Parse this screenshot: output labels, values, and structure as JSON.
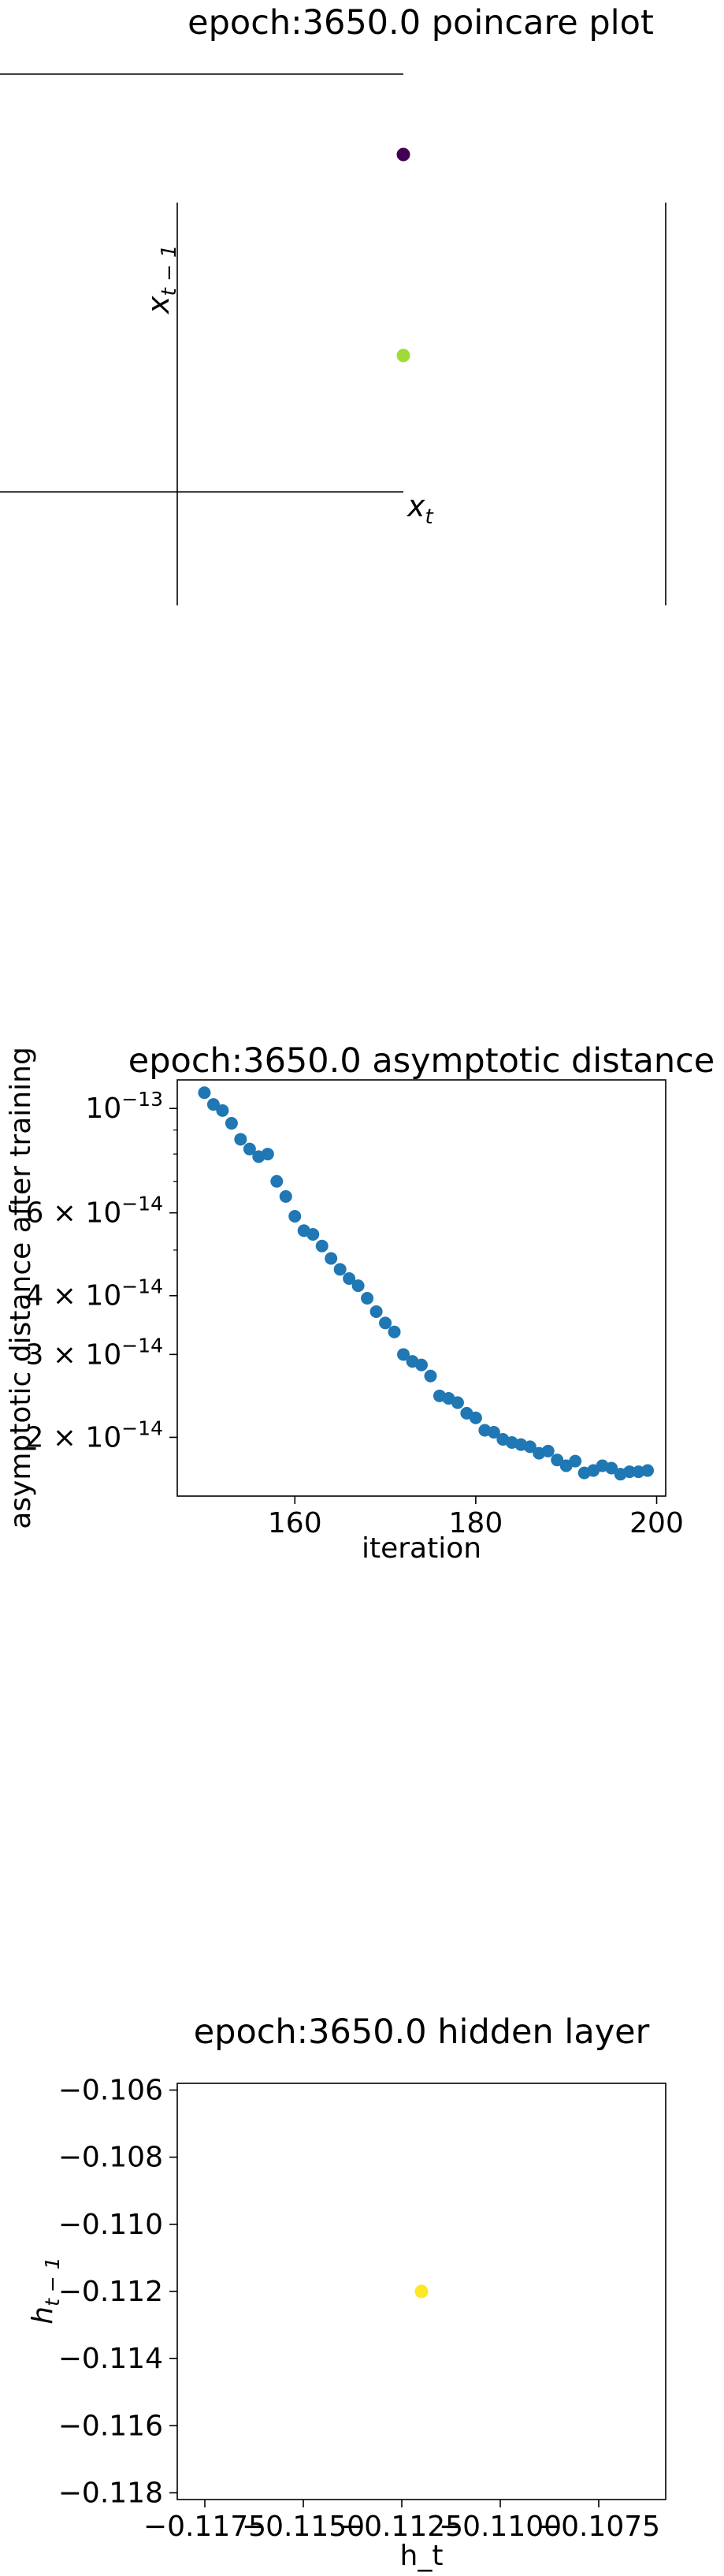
{
  "chart_data": [
    {
      "type": "scatter",
      "title": "epoch:3650.0 poincare plot",
      "xlabel": "x_t",
      "ylabel": "x_{t-1}",
      "points": [
        {
          "x": 0.0,
          "y": 1.0,
          "color": "#440154"
        },
        {
          "x": 0.0,
          "y": 0.5,
          "color": "#a0da39"
        }
      ],
      "grid": false
    },
    {
      "type": "scatter",
      "title": "epoch:3650.0 asymptotic distance",
      "xlabel": "iteration",
      "ylabel": "asymptotic distance after training",
      "yscale": "log",
      "xlim": [
        147,
        201
      ],
      "ylim": [
        1.5e-14,
        1.15e-13
      ],
      "xticks": [
        {
          "value": 160,
          "label": "160"
        },
        {
          "value": 180,
          "label": "180"
        },
        {
          "value": 200,
          "label": "200"
        }
      ],
      "yticks": [
        {
          "value": 1e-13,
          "base": "10",
          "exp": "−13"
        },
        {
          "value": 6e-14,
          "base": "6 × 10",
          "exp": "−14"
        },
        {
          "value": 4e-14,
          "base": "4 × 10",
          "exp": "−14"
        },
        {
          "value": 3e-14,
          "base": "3 × 10",
          "exp": "−14"
        },
        {
          "value": 2e-14,
          "base": "2 × 10",
          "exp": "−14"
        }
      ],
      "color": "#1f77b4",
      "x": [
        150,
        151,
        152,
        153,
        154,
        155,
        156,
        157,
        158,
        159,
        160,
        161,
        162,
        163,
        164,
        165,
        166,
        167,
        168,
        169,
        170,
        171,
        172,
        173,
        174,
        175,
        176,
        177,
        178,
        179,
        180,
        181,
        182,
        183,
        184,
        185,
        186,
        187,
        188,
        189,
        190,
        191,
        192,
        193,
        194,
        195,
        196,
        197,
        198,
        199
      ],
      "y": [
        1.08e-13,
        1.02e-13,
        9.9e-14,
        9.3e-14,
        8.6e-14,
        8.2e-14,
        7.9e-14,
        8e-14,
        7e-14,
        6.5e-14,
        5.9e-14,
        5.5e-14,
        5.4e-14,
        5.1e-14,
        4.8e-14,
        4.55e-14,
        4.35e-14,
        4.2e-14,
        3.95e-14,
        3.7e-14,
        3.5e-14,
        3.35e-14,
        3e-14,
        2.9e-14,
        2.85e-14,
        2.7e-14,
        2.45e-14,
        2.42e-14,
        2.37e-14,
        2.25e-14,
        2.2e-14,
        2.07e-14,
        2.05e-14,
        1.98e-14,
        1.95e-14,
        1.93e-14,
        1.91e-14,
        1.85e-14,
        1.87e-14,
        1.79e-14,
        1.74e-14,
        1.78e-14,
        1.68e-14,
        1.7e-14,
        1.74e-14,
        1.72e-14,
        1.67e-14,
        1.69e-14,
        1.69e-14,
        1.7e-14
      ]
    },
    {
      "type": "scatter",
      "title": "epoch:3650.0 hidden layer",
      "xlabel": "h_t",
      "ylabel": "h_{t-1}",
      "xlim": [
        -0.1182,
        -0.1058
      ],
      "ylim": [
        -0.1182,
        -0.1058
      ],
      "xticks": [
        "−0.1175",
        "−0.1150",
        "−0.1125",
        "−0.1100",
        "−0.1075"
      ],
      "xtick_values": [
        -0.1175,
        -0.115,
        -0.1125,
        -0.11,
        -0.1075
      ],
      "yticks": [
        "−0.106",
        "−0.108",
        "−0.110",
        "−0.112",
        "−0.114",
        "−0.116",
        "−0.118"
      ],
      "ytick_values": [
        -0.106,
        -0.108,
        -0.11,
        -0.112,
        -0.114,
        -0.116,
        -0.118
      ],
      "points": [
        {
          "x": -0.112,
          "y": -0.112,
          "color": "#fde725"
        }
      ]
    }
  ]
}
